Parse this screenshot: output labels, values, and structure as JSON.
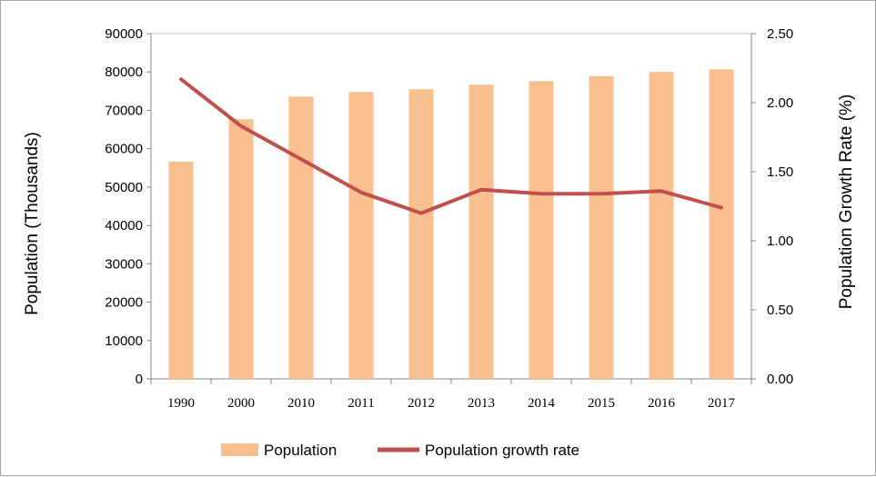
{
  "chart_data": {
    "type": "bar",
    "categories": [
      "1990",
      "2000",
      "2010",
      "2011",
      "2012",
      "2013",
      "2014",
      "2015",
      "2016",
      "2017"
    ],
    "series": [
      {
        "name": "Population",
        "type": "bar",
        "axis": "left",
        "color": "#f9bf8f",
        "values": [
          56600,
          67700,
          73600,
          74800,
          75500,
          76700,
          77600,
          78900,
          80000,
          80700
        ]
      },
      {
        "name": "Population growth rate",
        "type": "line",
        "axis": "right",
        "color": "#c0504d",
        "values": [
          2.17,
          1.83,
          1.59,
          1.35,
          1.2,
          1.37,
          1.34,
          1.34,
          1.36,
          1.24
        ]
      }
    ],
    "ylabel": "Population (Thousands)",
    "ylabel_right": "Population Growth Rate (%)",
    "ylim": [
      0,
      90000
    ],
    "ylim_right": [
      0,
      2.5
    ],
    "yticks": [
      "0",
      "10000",
      "20000",
      "30000",
      "40000",
      "50000",
      "60000",
      "70000",
      "80000",
      "90000"
    ],
    "yticks_right": [
      "0.00",
      "0.50",
      "1.00",
      "1.50",
      "2.00",
      "2.50"
    ],
    "grid": false,
    "legend_position": "bottom"
  }
}
